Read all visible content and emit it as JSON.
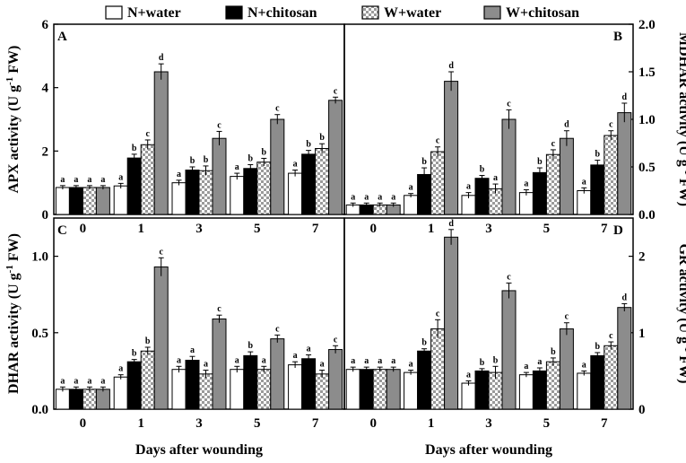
{
  "legend": [
    {
      "label": "N+water",
      "color": "#ffffff",
      "pattern": "solid-white"
    },
    {
      "label": "N+chitosan",
      "color": "#000000",
      "pattern": "solid-black"
    },
    {
      "label": "W+water",
      "color": "#c8c8c8",
      "pattern": "checker"
    },
    {
      "label": "W+chitosan",
      "color": "#8c8c8c",
      "pattern": "solid-gray"
    }
  ],
  "chart_data": [
    {
      "type": "bar",
      "panel_label": "A",
      "categories": [
        "0",
        "1",
        "3",
        "5",
        "7"
      ],
      "xlabel": "",
      "ylabel": "APX activity (U g",
      "ylabel_sup": "-1",
      "ylabel_tail": " FW)",
      "ylabel_side": "left",
      "ylim": [
        0,
        6
      ],
      "yticks": [
        "0",
        "2",
        "4",
        "6"
      ],
      "series": [
        {
          "name": "N+water",
          "values": [
            0.85,
            0.9,
            1.0,
            1.2,
            1.3
          ],
          "errors": [
            0.06,
            0.08,
            0.08,
            0.1,
            0.1
          ],
          "letters": [
            "a",
            "a",
            "a",
            "a",
            "a"
          ]
        },
        {
          "name": "N+chitosan",
          "values": [
            0.85,
            1.78,
            1.4,
            1.45,
            1.9
          ],
          "errors": [
            0.06,
            0.12,
            0.1,
            0.12,
            0.12
          ],
          "letters": [
            "a",
            "b",
            "b",
            "b",
            "b"
          ]
        },
        {
          "name": "W+water",
          "values": [
            0.85,
            2.2,
            1.38,
            1.65,
            2.08
          ],
          "errors": [
            0.06,
            0.15,
            0.15,
            0.12,
            0.15
          ],
          "letters": [
            "a",
            "c",
            "b",
            "b",
            "b"
          ]
        },
        {
          "name": "W+chitosan",
          "values": [
            0.85,
            4.5,
            2.4,
            3.0,
            3.6
          ],
          "errors": [
            0.06,
            0.25,
            0.22,
            0.15,
            0.1
          ],
          "letters": [
            "a",
            "d",
            "c",
            "c",
            "c"
          ]
        }
      ]
    },
    {
      "type": "bar",
      "panel_label": "B",
      "categories": [
        "0",
        "1",
        "3",
        "5",
        "7"
      ],
      "xlabel": "",
      "ylabel": "MDHAR activity (U g",
      "ylabel_sup": "-1",
      "ylabel_tail": " FW)",
      "ylabel_side": "right",
      "ylim": [
        0,
        2.0
      ],
      "yticks": [
        "0.0",
        "0.5",
        "1.0",
        "1.5",
        "2.0"
      ],
      "series": [
        {
          "name": "N+water",
          "values": [
            0.1,
            0.2,
            0.2,
            0.23,
            0.25
          ],
          "errors": [
            0.02,
            0.02,
            0.03,
            0.03,
            0.03
          ],
          "letters": [
            "a",
            "a",
            "a",
            "a",
            "a"
          ]
        },
        {
          "name": "N+chitosan",
          "values": [
            0.1,
            0.42,
            0.38,
            0.44,
            0.52
          ],
          "errors": [
            0.02,
            0.07,
            0.03,
            0.05,
            0.05
          ],
          "letters": [
            "a",
            "b",
            "b",
            "b",
            "b"
          ]
        },
        {
          "name": "W+water",
          "values": [
            0.1,
            0.66,
            0.27,
            0.63,
            0.83
          ],
          "errors": [
            0.02,
            0.05,
            0.05,
            0.05,
            0.05
          ],
          "letters": [
            "a",
            "c",
            "a",
            "c",
            "c"
          ]
        },
        {
          "name": "W+chitosan",
          "values": [
            0.1,
            1.4,
            1.0,
            0.8,
            1.07
          ],
          "errors": [
            0.02,
            0.1,
            0.1,
            0.08,
            0.1
          ],
          "letters": [
            "a",
            "d",
            "c",
            "d",
            "d"
          ]
        }
      ]
    },
    {
      "type": "bar",
      "panel_label": "C",
      "categories": [
        "0",
        "1",
        "3",
        "5",
        "7"
      ],
      "xlabel": "Days after wounding",
      "ylabel": "DHAR activity (U g",
      "ylabel_sup": "-1",
      "ylabel_tail": " FW)",
      "ylabel_side": "left",
      "ylim": [
        0,
        1.25
      ],
      "yticks": [
        "0.0",
        "0.5",
        "1.0"
      ],
      "ytick_values": [
        0,
        0.5,
        1.0
      ],
      "series": [
        {
          "name": "N+water",
          "values": [
            0.13,
            0.21,
            0.26,
            0.26,
            0.29
          ],
          "errors": [
            0.015,
            0.015,
            0.02,
            0.02,
            0.02
          ],
          "letters": [
            "a",
            "a",
            "a",
            "a",
            "a"
          ]
        },
        {
          "name": "N+chitosan",
          "values": [
            0.13,
            0.31,
            0.32,
            0.35,
            0.33
          ],
          "errors": [
            0.015,
            0.015,
            0.025,
            0.025,
            0.025
          ],
          "letters": [
            "a",
            "b",
            "a",
            "b",
            "a"
          ]
        },
        {
          "name": "W+water",
          "values": [
            0.13,
            0.38,
            0.23,
            0.26,
            0.23
          ],
          "errors": [
            0.015,
            0.025,
            0.025,
            0.02,
            0.025
          ],
          "letters": [
            "a",
            "b",
            "a",
            "a",
            "a"
          ]
        },
        {
          "name": "W+chitosan",
          "values": [
            0.13,
            0.93,
            0.59,
            0.46,
            0.39
          ],
          "errors": [
            0.015,
            0.06,
            0.025,
            0.025,
            0.025
          ],
          "letters": [
            "a",
            "c",
            "c",
            "c",
            "c"
          ]
        }
      ]
    },
    {
      "type": "bar",
      "panel_label": "D",
      "categories": [
        "0",
        "1",
        "3",
        "5",
        "7"
      ],
      "xlabel": "Days after wounding",
      "ylabel": "GR activity (U g",
      "ylabel_sup": "-1",
      "ylabel_tail": " FW)",
      "ylabel_side": "right",
      "ylim": [
        0,
        2.5
      ],
      "yticks": [
        "0",
        "1",
        "2"
      ],
      "ytick_values": [
        0,
        1,
        2
      ],
      "series": [
        {
          "name": "N+water",
          "values": [
            0.52,
            0.48,
            0.34,
            0.45,
            0.47
          ],
          "errors": [
            0.03,
            0.03,
            0.03,
            0.03,
            0.03
          ],
          "letters": [
            "a",
            "a",
            "a",
            "a",
            "a"
          ]
        },
        {
          "name": "N+chitosan",
          "values": [
            0.52,
            0.76,
            0.5,
            0.5,
            0.7
          ],
          "errors": [
            0.03,
            0.03,
            0.03,
            0.04,
            0.04
          ],
          "letters": [
            "a",
            "b",
            "b",
            "a",
            "b"
          ]
        },
        {
          "name": "W+water",
          "values": [
            0.52,
            1.05,
            0.48,
            0.62,
            0.83
          ],
          "errors": [
            0.03,
            0.12,
            0.08,
            0.05,
            0.05
          ],
          "letters": [
            "a",
            "c",
            "b",
            "b",
            "c"
          ]
        },
        {
          "name": "W+chitosan",
          "values": [
            0.52,
            2.25,
            1.55,
            1.05,
            1.33
          ],
          "errors": [
            0.03,
            0.1,
            0.1,
            0.08,
            0.05
          ],
          "letters": [
            "a",
            "d",
            "c",
            "c",
            "d"
          ]
        }
      ]
    }
  ]
}
